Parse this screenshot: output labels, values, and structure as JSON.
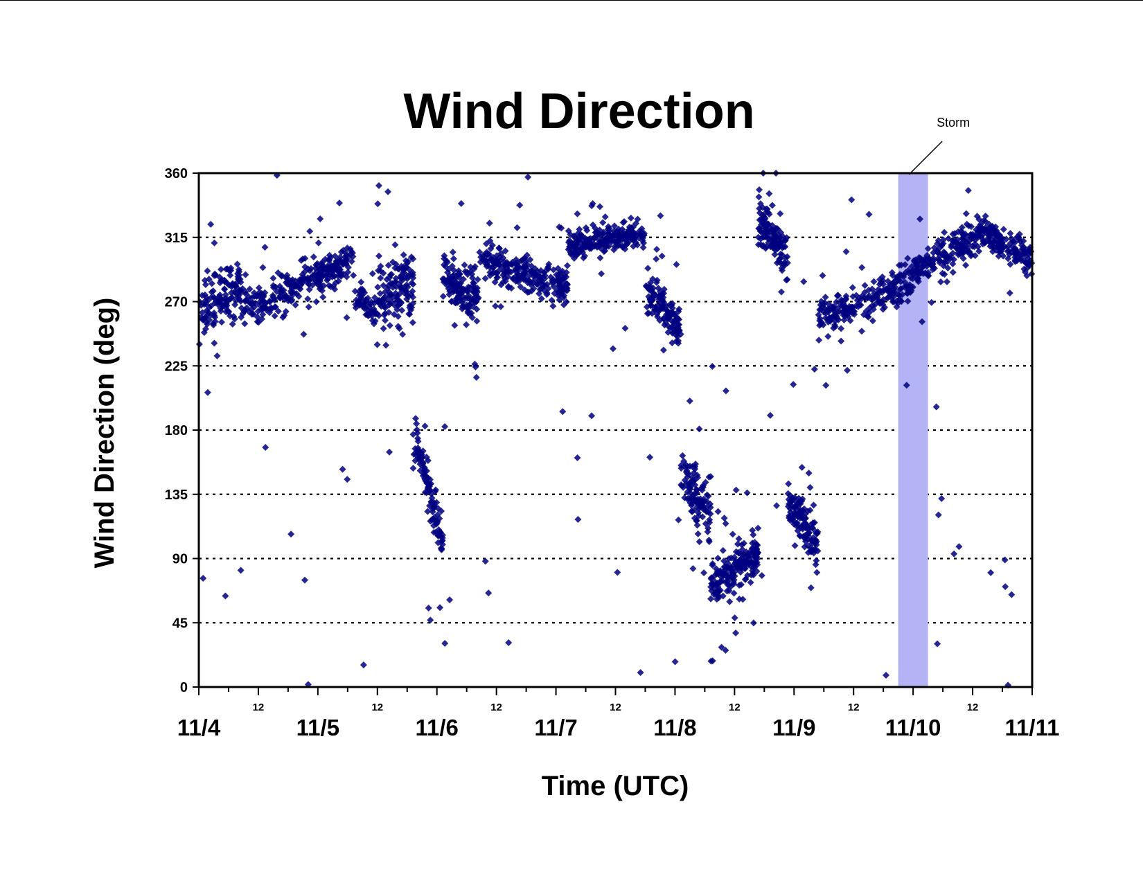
{
  "chart_data": {
    "type": "scatter",
    "title": "Wind Direction",
    "xlabel": "Time (UTC)",
    "ylabel": "Wind Direction (deg)",
    "xlim": [
      "11/4 00:00",
      "11/11 00:00"
    ],
    "ylim": [
      0,
      360
    ],
    "y_ticks": [
      0,
      45,
      90,
      135,
      180,
      225,
      270,
      315,
      360
    ],
    "x_major_ticks": [
      "11/4",
      "11/5",
      "11/6",
      "11/7",
      "11/8",
      "11/9",
      "11/10",
      "11/11"
    ],
    "x_minor_tick_label": "12",
    "grid": "horizontal dotted at each y tick",
    "marker": "diamond",
    "series_color": "#000080",
    "annotation": {
      "text": "Storm",
      "x_start": "11/9 21:00",
      "x_end": "11/10 03:00",
      "color": "#b3b3f5"
    },
    "series": [
      {
        "segments": [
          {
            "x_start_day": 0.0,
            "x_end_day": 0.35,
            "y_start": 265,
            "y_end": 282,
            "spread": 35,
            "density": 170
          },
          {
            "x_start_day": 0.35,
            "x_end_day": 0.62,
            "y_start": 270,
            "y_end": 268,
            "spread": 26,
            "density": 120
          },
          {
            "x_start_day": 0.62,
            "x_end_day": 1.3,
            "y_start": 272,
            "y_end": 300,
            "spread": 22,
            "density": 150
          },
          {
            "x_start_day": 1.3,
            "x_end_day": 1.5,
            "y_start": 275,
            "y_end": 262,
            "spread": 15,
            "density": 120
          },
          {
            "x_start_day": 1.5,
            "x_end_day": 1.8,
            "y_start": 270,
            "y_end": 280,
            "spread": 40,
            "density": 200
          },
          {
            "x_start_day": 1.8,
            "x_end_day": 2.05,
            "y_start": 180,
            "y_end": 100,
            "spread": 28,
            "density": 200
          },
          {
            "x_start_day": 2.05,
            "x_end_day": 2.35,
            "y_start": 290,
            "y_end": 270,
            "spread": 30,
            "density": 220
          },
          {
            "x_start_day": 2.35,
            "x_end_day": 3.1,
            "y_start": 300,
            "y_end": 280,
            "spread": 22,
            "density": 150
          },
          {
            "x_start_day": 3.1,
            "x_end_day": 3.75,
            "y_start": 310,
            "y_end": 318,
            "spread": 18,
            "density": 150
          },
          {
            "x_start_day": 3.75,
            "x_end_day": 4.05,
            "y_start": 280,
            "y_end": 250,
            "spread": 25,
            "density": 200
          },
          {
            "x_start_day": 4.05,
            "x_end_day": 4.3,
            "y_start": 150,
            "y_end": 120,
            "spread": 35,
            "density": 200
          },
          {
            "x_start_day": 4.3,
            "x_end_day": 4.7,
            "y_start": 70,
            "y_end": 95,
            "spread": 28,
            "density": 220
          },
          {
            "x_start_day": 4.7,
            "x_end_day": 4.95,
            "y_start": 330,
            "y_end": 300,
            "spread": 30,
            "density": 220
          },
          {
            "x_start_day": 4.95,
            "x_end_day": 5.2,
            "y_start": 130,
            "y_end": 100,
            "spread": 25,
            "density": 240
          },
          {
            "x_start_day": 5.2,
            "x_end_day": 5.55,
            "y_start": 260,
            "y_end": 268,
            "spread": 20,
            "density": 130
          },
          {
            "x_start_day": 5.55,
            "x_end_day": 6.0,
            "y_start": 268,
            "y_end": 285,
            "spread": 22,
            "density": 130
          },
          {
            "x_start_day": 6.0,
            "x_end_day": 6.6,
            "y_start": 290,
            "y_end": 318,
            "spread": 22,
            "density": 150
          },
          {
            "x_start_day": 6.6,
            "x_end_day": 7.0,
            "y_start": 318,
            "y_end": 300,
            "spread": 20,
            "density": 150
          }
        ]
      }
    ]
  }
}
